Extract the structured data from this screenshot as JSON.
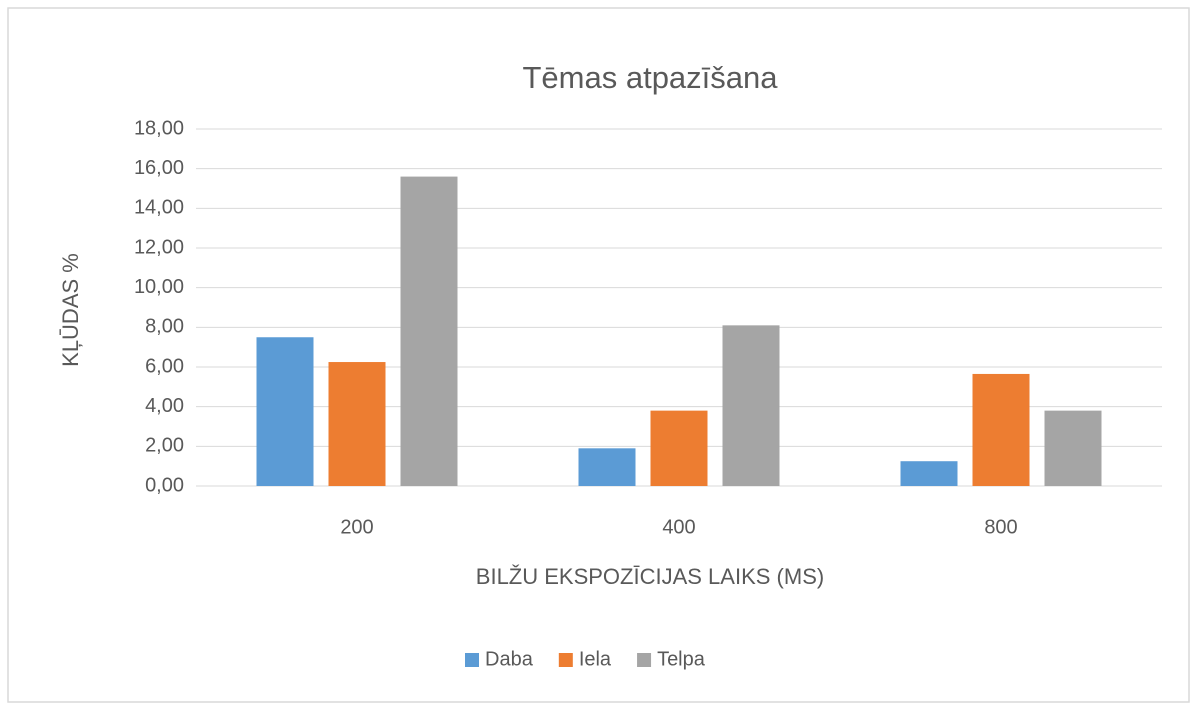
{
  "chart_data": {
    "type": "bar",
    "title": "Tēmas atpazīšana",
    "x_label": "BILŽU EKSPOZĪCIJAS LAIKS (MS)",
    "y_label": "KĻŪDAS %",
    "categories": [
      "200",
      "400",
      "800"
    ],
    "series": [
      {
        "name": "Daba",
        "color": "#5b9bd5",
        "values": [
          7.5,
          1.9,
          1.25
        ]
      },
      {
        "name": "Iela",
        "color": "#ed7d31",
        "values": [
          6.25,
          3.8,
          5.65
        ]
      },
      {
        "name": "Telpa",
        "color": "#a5a5a5",
        "values": [
          15.6,
          8.1,
          3.8
        ]
      }
    ],
    "ylim": [
      0,
      18
    ],
    "yticks": [
      {
        "value": 0,
        "label": "0,00"
      },
      {
        "value": 2,
        "label": "2,00"
      },
      {
        "value": 4,
        "label": "4,00"
      },
      {
        "value": 6,
        "label": "6,00"
      },
      {
        "value": 8,
        "label": "8,00"
      },
      {
        "value": 10,
        "label": "10,00"
      },
      {
        "value": 12,
        "label": "12,00"
      },
      {
        "value": 14,
        "label": "14,00"
      },
      {
        "value": 16,
        "label": "16,00"
      },
      {
        "value": 18,
        "label": "18,00"
      }
    ],
    "grid": true,
    "legend": "bottom"
  }
}
